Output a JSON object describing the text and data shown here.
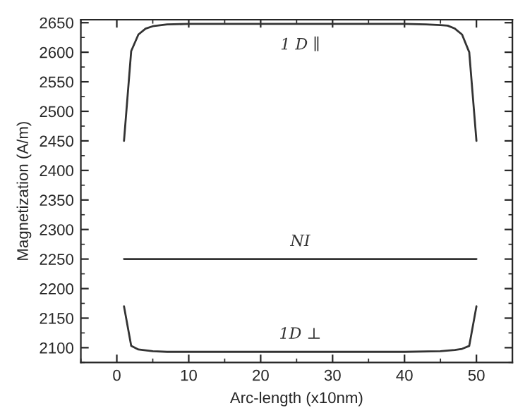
{
  "chart_data": {
    "type": "line",
    "xlabel": "Arc-length (x10nm)",
    "ylabel": "Magnetization (A/m)",
    "xlim": [
      -5,
      55
    ],
    "xticks": [
      0,
      10,
      20,
      30,
      40,
      50
    ],
    "ylim": [
      2075,
      2655
    ],
    "yticks": [
      2100,
      2150,
      2200,
      2250,
      2300,
      2350,
      2400,
      2450,
      2500,
      2550,
      2600,
      2650
    ],
    "grid": false,
    "marker": "none",
    "line_style": "solid",
    "series": [
      {
        "name": "1 D ∥",
        "color": "#333333",
        "x": [
          1,
          2,
          3,
          4,
          5,
          7,
          10,
          20,
          30,
          40,
          43,
          45,
          46,
          47,
          48,
          49,
          50
        ],
        "values": [
          2450,
          2602,
          2630,
          2640,
          2644,
          2647,
          2648,
          2648,
          2648,
          2648,
          2647,
          2646,
          2645,
          2640,
          2630,
          2600,
          2450
        ]
      },
      {
        "name": "NI",
        "color": "#333333",
        "x": [
          1,
          50
        ],
        "values": [
          2250,
          2250
        ]
      },
      {
        "name": "1D ⊥",
        "color": "#333333",
        "x": [
          1,
          2,
          3,
          5,
          7,
          10,
          20,
          30,
          40,
          45,
          47,
          48,
          49,
          50
        ],
        "values": [
          2170,
          2103,
          2097,
          2094,
          2093,
          2093,
          2093,
          2093,
          2093,
          2094,
          2096,
          2098,
          2103,
          2170
        ]
      }
    ]
  }
}
